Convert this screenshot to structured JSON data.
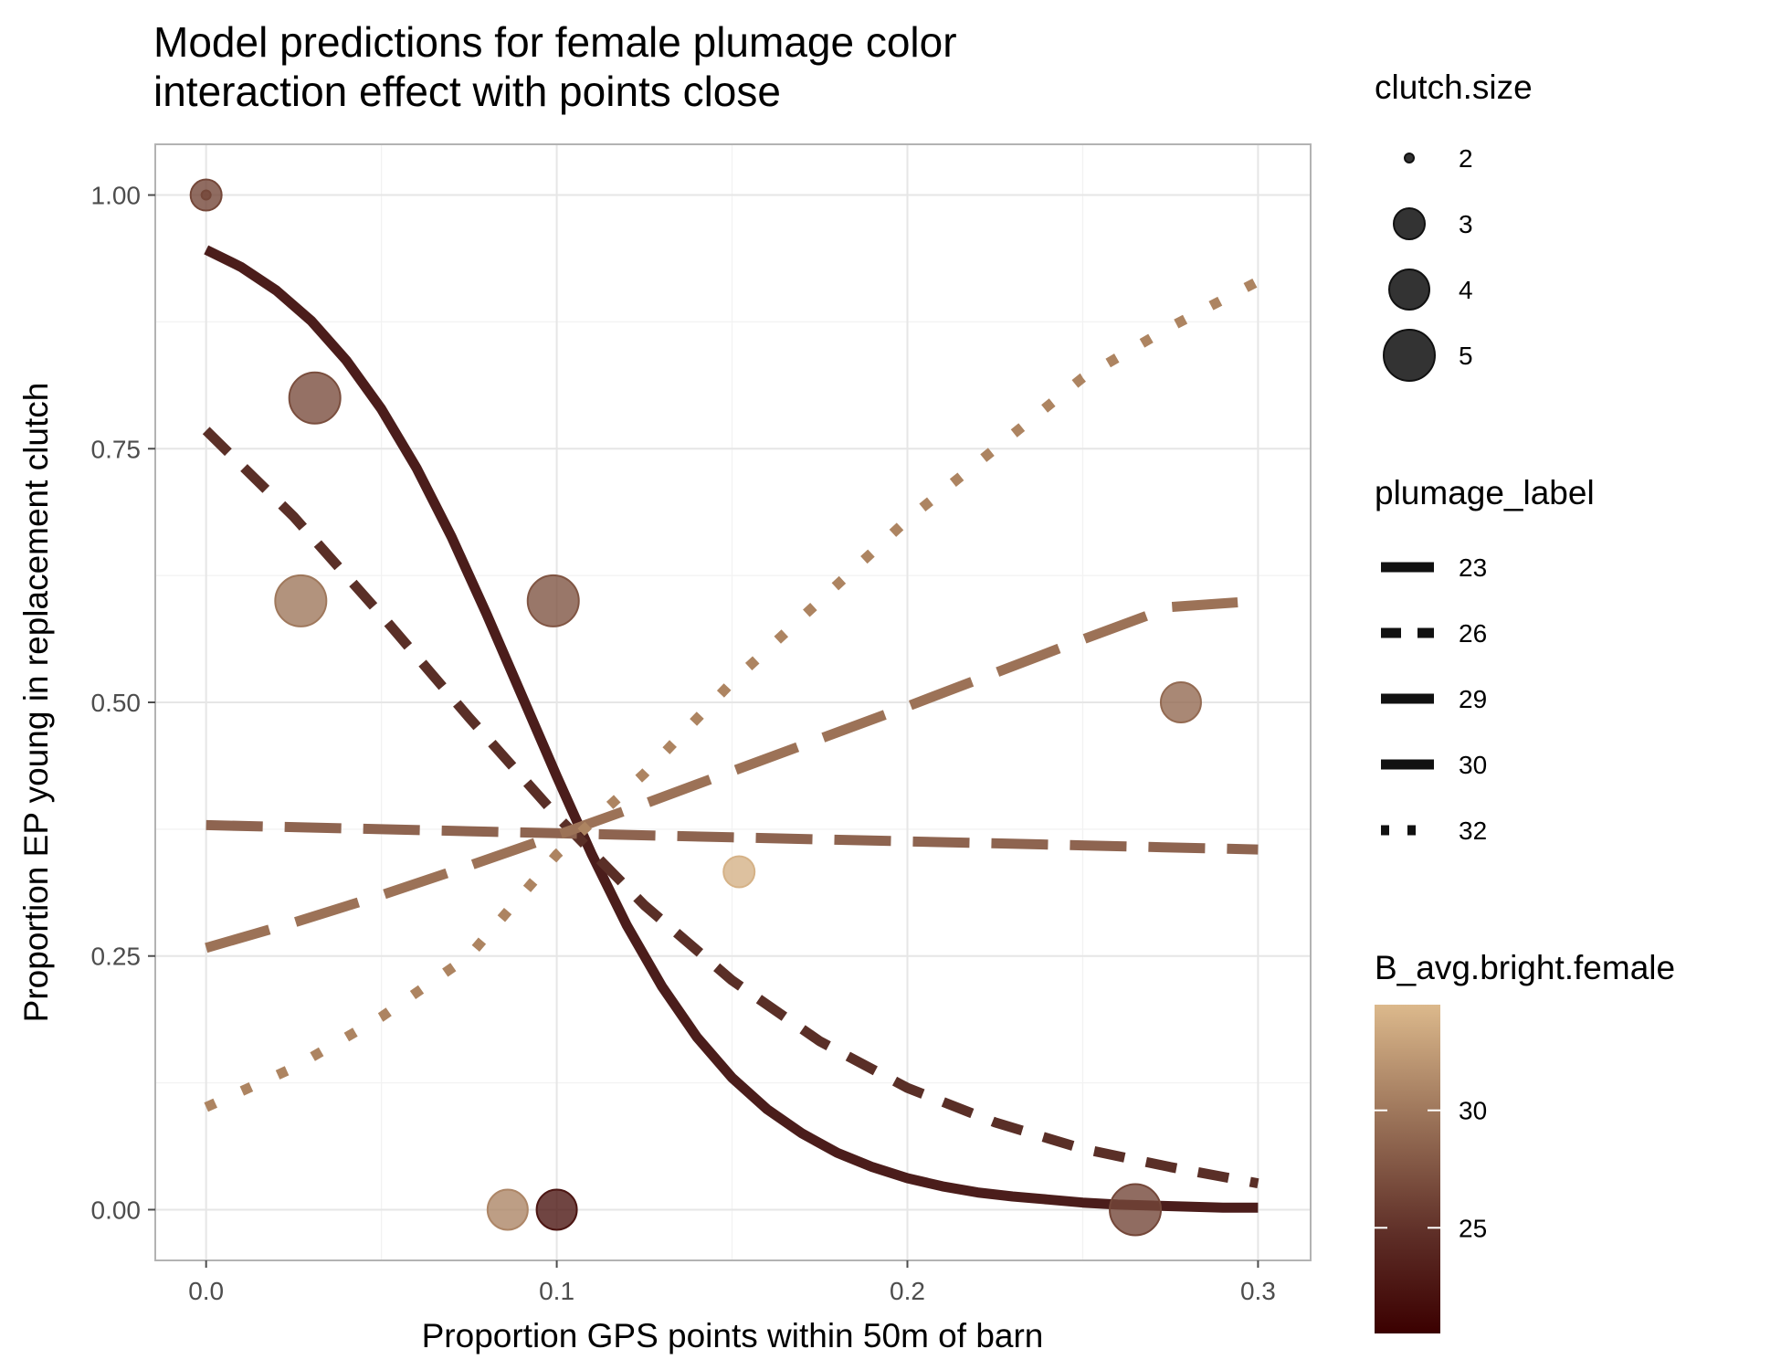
{
  "chart_data": {
    "type": "scatter",
    "title": "Model predictions for female plumage color\ninteraction effect with points close",
    "xlabel": "Proportion GPS points within 50m of barn",
    "ylabel": "Proportion EP young in replacement clutch",
    "xlim": [
      -0.0145,
      0.315
    ],
    "ylim": [
      -0.05,
      1.05
    ],
    "x_ticks": [
      0.0,
      0.1,
      0.2,
      0.3
    ],
    "x_tick_labels": [
      "0.0",
      "0.1",
      "0.2",
      "0.3"
    ],
    "y_ticks": [
      0.0,
      0.25,
      0.5,
      0.75,
      1.0
    ],
    "y_tick_labels": [
      "0.00",
      "0.25",
      "0.50",
      "0.75",
      "1.00"
    ],
    "grid": true,
    "color_scale": {
      "min": 20.5,
      "max": 34.5,
      "low_color": "#3b0000",
      "high_color": "#dcb98c"
    },
    "points": [
      {
        "x": 0.0,
        "y": 1.0,
        "size": 2,
        "color": 26.5
      },
      {
        "x": 0.0,
        "y": 1.0,
        "size": 3,
        "color": 26.5
      },
      {
        "x": 0.031,
        "y": 0.8,
        "size": 5,
        "color": 27.0
      },
      {
        "x": 0.027,
        "y": 0.6,
        "size": 5,
        "color": 30.0
      },
      {
        "x": 0.099,
        "y": 0.6,
        "size": 5,
        "color": 27.5
      },
      {
        "x": 0.278,
        "y": 0.5,
        "size": 4,
        "color": 29.0
      },
      {
        "x": 0.152,
        "y": 0.333,
        "size": 3,
        "color": 34.0
      },
      {
        "x": 0.086,
        "y": 0.0,
        "size": 4,
        "color": 31.0
      },
      {
        "x": 0.1,
        "y": 0.0,
        "size": 4,
        "color": 22.5
      },
      {
        "x": 0.265,
        "y": 0.0,
        "size": 5,
        "color": 26.5
      }
    ],
    "series": [
      {
        "name": "23",
        "color": "#4b1d1b",
        "dash": "solid",
        "x": [
          0.0,
          0.01,
          0.02,
          0.03,
          0.04,
          0.05,
          0.06,
          0.07,
          0.08,
          0.09,
          0.1,
          0.11,
          0.12,
          0.13,
          0.14,
          0.15,
          0.16,
          0.17,
          0.18,
          0.19,
          0.2,
          0.21,
          0.22,
          0.23,
          0.24,
          0.25,
          0.26,
          0.27,
          0.28,
          0.29,
          0.3
        ],
        "values": [
          0.946,
          0.929,
          0.906,
          0.876,
          0.837,
          0.789,
          0.731,
          0.663,
          0.587,
          0.507,
          0.427,
          0.35,
          0.28,
          0.22,
          0.17,
          0.13,
          0.099,
          0.075,
          0.056,
          0.042,
          0.031,
          0.023,
          0.017,
          0.013,
          0.01,
          0.007,
          0.005,
          0.004,
          0.003,
          0.002,
          0.002
        ]
      },
      {
        "name": "26",
        "color": "#5a2f27",
        "dash": "26",
        "x": [
          0.0,
          0.025,
          0.05,
          0.075,
          0.1,
          0.125,
          0.15,
          0.175,
          0.2,
          0.225,
          0.25,
          0.275,
          0.3
        ],
        "values": [
          0.768,
          0.683,
          0.586,
          0.485,
          0.388,
          0.3,
          0.226,
          0.166,
          0.12,
          0.086,
          0.06,
          0.042,
          0.026
        ]
      },
      {
        "name": "29",
        "color": "#8e6450",
        "dash": "29",
        "x": [
          0.0,
          0.05,
          0.1,
          0.15,
          0.2,
          0.25,
          0.3
        ],
        "values": [
          0.379,
          0.375,
          0.371,
          0.367,
          0.363,
          0.359,
          0.355
        ]
      },
      {
        "name": "30",
        "color": "#9c7257",
        "dash": "30",
        "x": [
          0.0,
          0.025,
          0.05,
          0.075,
          0.1,
          0.125,
          0.15,
          0.175,
          0.2,
          0.225,
          0.25,
          0.275,
          0.3
        ],
        "values": [
          0.258,
          0.283,
          0.31,
          0.339,
          0.369,
          0.4,
          0.432,
          0.464,
          0.496,
          0.529,
          0.562,
          0.594,
          0.6
        ]
      },
      {
        "name": "32",
        "color": "#ad8461",
        "dash": "32",
        "x": [
          0.0,
          0.025,
          0.05,
          0.075,
          0.1,
          0.125,
          0.15,
          0.175,
          0.2,
          0.225,
          0.25,
          0.275,
          0.3
        ],
        "values": [
          0.101,
          0.14,
          0.19,
          0.25,
          0.35,
          0.43,
          0.52,
          0.6,
          0.68,
          0.75,
          0.82,
          0.87,
          0.915
        ]
      }
    ],
    "legend_size": {
      "title": "clutch.size",
      "entries": [
        {
          "label": "2",
          "size": 2
        },
        {
          "label": "3",
          "size": 3
        },
        {
          "label": "4",
          "size": 4
        },
        {
          "label": "5",
          "size": 5
        }
      ]
    },
    "legend_line": {
      "title": "plumage_label",
      "entries": [
        {
          "label": "23",
          "dash": "solid"
        },
        {
          "label": "26",
          "dash": "26"
        },
        {
          "label": "29",
          "dash": "29"
        },
        {
          "label": "30",
          "dash": "30"
        },
        {
          "label": "32",
          "dash": "32"
        }
      ]
    },
    "legend_color": {
      "title": "B_avg.bright.female",
      "ticks": [
        {
          "label": "25",
          "value": 25
        },
        {
          "label": "30",
          "value": 30
        }
      ]
    },
    "legend_placement": "right"
  }
}
